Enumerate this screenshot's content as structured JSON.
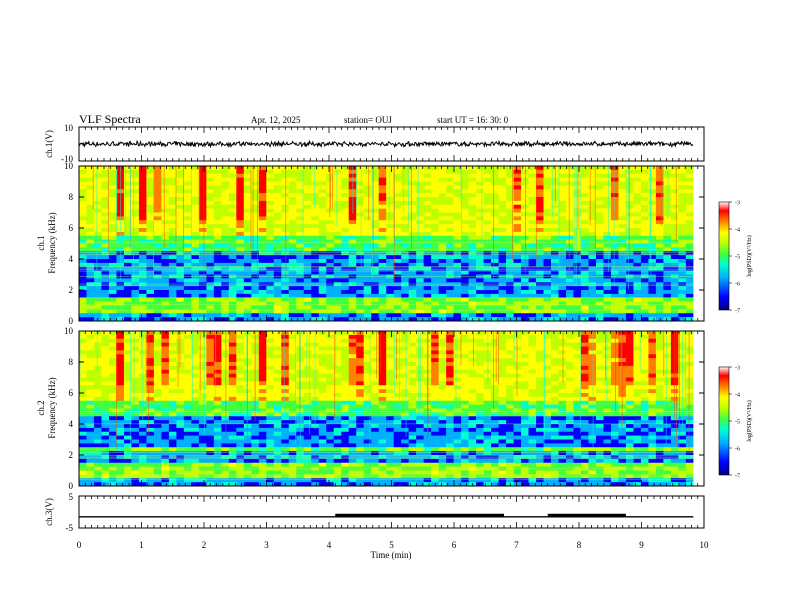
{
  "header": {
    "title": "VLF Spectra",
    "date": "Apr. 12, 2025",
    "station": "station= OUJ",
    "start_ut": "start  UT  =   16: 30: 0"
  },
  "colorbar": {
    "label": "log(PSD)(V²/Hz)",
    "ticks": [
      "-3",
      "-4",
      "-5",
      "-6",
      "-7"
    ],
    "range": [
      -7,
      -3
    ],
    "colors": [
      "#000080",
      "#0000ff",
      "#00b0ff",
      "#00ffd0",
      "#40ff40",
      "#c0ff00",
      "#ffff00",
      "#ff8000",
      "#ff0000",
      "#ffffff"
    ]
  },
  "chart_data": [
    {
      "type": "line",
      "panel": "ch1-waveform",
      "ylabel": "ch.1(V)",
      "yticklabels": [
        "10",
        "-10"
      ],
      "ylim": [
        -10,
        10
      ],
      "xlim": [
        0,
        10
      ],
      "amplitude_envelope": 1.2
    },
    {
      "type": "heatmap",
      "panel": "ch1-spectrogram",
      "ylabel": "ch.1\nFrequency (kHz)",
      "yticks": [
        "0",
        "2",
        "4",
        "6",
        "8",
        "10"
      ],
      "ylim": [
        0,
        10
      ],
      "xlim": [
        0,
        9.83
      ],
      "color_scale": "log(PSD)",
      "zlim": [
        -7,
        -3
      ]
    },
    {
      "type": "heatmap",
      "panel": "ch2-spectrogram",
      "ylabel": "ch.2\nFrequency (kHz)",
      "yticks": [
        "0",
        "2",
        "4",
        "6",
        "8",
        "10"
      ],
      "ylim": [
        0,
        10
      ],
      "xlim": [
        0,
        9.83
      ],
      "color_scale": "log(PSD)",
      "zlim": [
        -7,
        -3
      ]
    },
    {
      "type": "line",
      "panel": "ch3-trace",
      "ylabel": "ch.3(V)",
      "yticklabels": [
        "5",
        "-5"
      ],
      "ylim": [
        -5,
        5
      ],
      "xlim": [
        0,
        10
      ],
      "baseline": -1.5,
      "thick_intervals": [
        [
          4.1,
          6.8
        ],
        [
          7.5,
          8.75
        ]
      ]
    }
  ],
  "x_axis": {
    "label": "Time  (min)",
    "ticks": [
      "0",
      "1",
      "2",
      "3",
      "4",
      "5",
      "6",
      "7",
      "8",
      "9",
      "10"
    ]
  }
}
